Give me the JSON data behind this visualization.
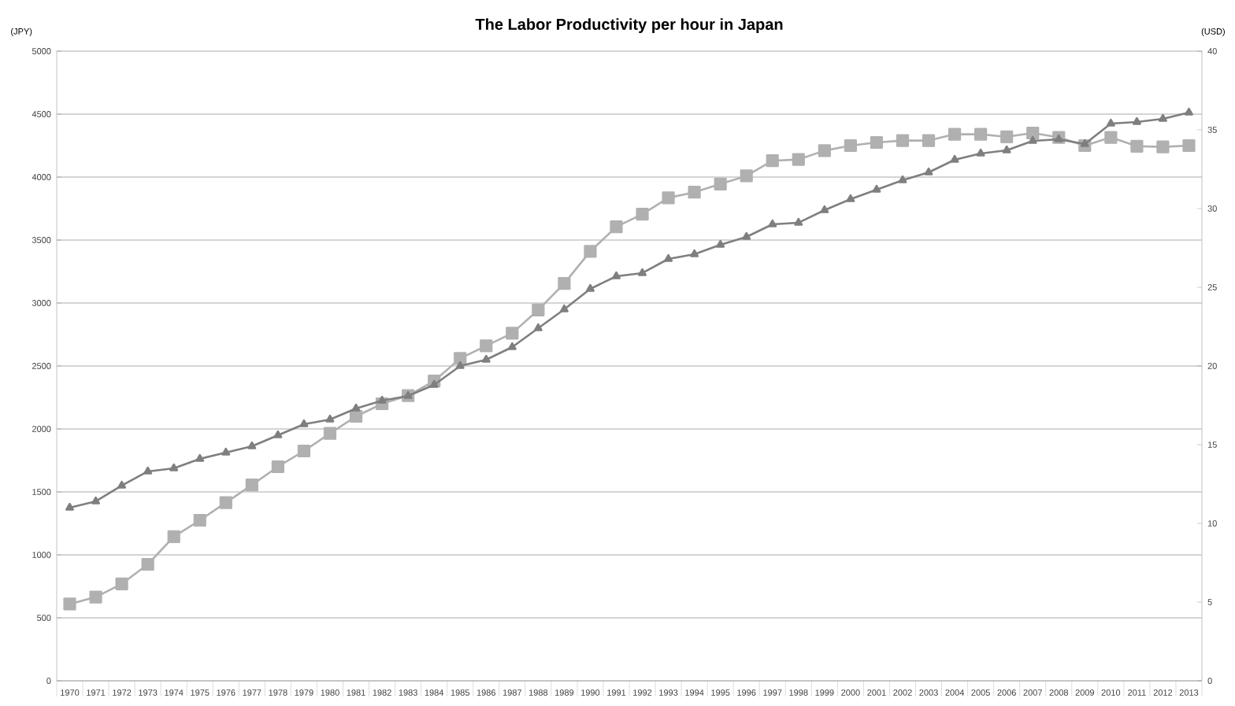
{
  "chart_data": {
    "type": "line",
    "title": "The Labor Productivity per hour in Japan",
    "ylabel": "(JPY)",
    "y2label": "(USD)",
    "categories": [
      "1970",
      "1971",
      "1972",
      "1973",
      "1974",
      "1975",
      "1976",
      "1977",
      "1978",
      "1979",
      "1980",
      "1981",
      "1982",
      "1983",
      "1984",
      "1985",
      "1986",
      "1987",
      "1988",
      "1989",
      "1990",
      "1991",
      "1992",
      "1993",
      "1994",
      "1995",
      "1996",
      "1997",
      "1998",
      "1999",
      "2000",
      "2001",
      "2002",
      "2003",
      "2004",
      "2005",
      "2006",
      "2007",
      "2008",
      "2009",
      "2010",
      "2011",
      "2012",
      "2013"
    ],
    "series": [
      {
        "color": "#b0b0b0",
        "marker": "square",
        "values": [
          610,
          665,
          770,
          925,
          1145,
          1275,
          1415,
          1555,
          1700,
          1825,
          1965,
          2100,
          2200,
          2265,
          2380,
          2560,
          2660,
          2760,
          2945,
          3155,
          3410,
          3605,
          3705,
          3835,
          3880,
          3945,
          4010,
          4130,
          4140,
          4210,
          4250,
          4275,
          4290,
          4290,
          4340,
          4340,
          4320,
          4350,
          4315,
          4250,
          4315,
          4245,
          4240,
          4250
        ]
      },
      {
        "color": "#7f7f7f",
        "marker": "triangle",
        "axis": "y2",
        "values": [
          11.0,
          11.4,
          12.4,
          13.3,
          13.5,
          14.1,
          14.5,
          14.9,
          15.6,
          16.3,
          16.6,
          17.3,
          17.8,
          18.1,
          18.8,
          20.0,
          20.4,
          21.2,
          22.4,
          23.6,
          24.9,
          25.7,
          25.9,
          26.8,
          27.1,
          27.7,
          28.2,
          29.0,
          29.1,
          29.9,
          30.6,
          31.2,
          31.8,
          32.3,
          33.1,
          33.5,
          33.7,
          34.3,
          34.4,
          34.1,
          35.4,
          35.5,
          35.7,
          36.1
        ]
      }
    ],
    "ylim": [
      0,
      5000
    ],
    "yticks": [
      0,
      500,
      1000,
      1500,
      2000,
      2500,
      3000,
      3500,
      4000,
      4500,
      5000
    ],
    "y2lim": [
      0,
      40
    ],
    "y2ticks": [
      0,
      5,
      10,
      15,
      20,
      25,
      30,
      35,
      40
    ],
    "grid": "y",
    "line_style": "solid"
  }
}
